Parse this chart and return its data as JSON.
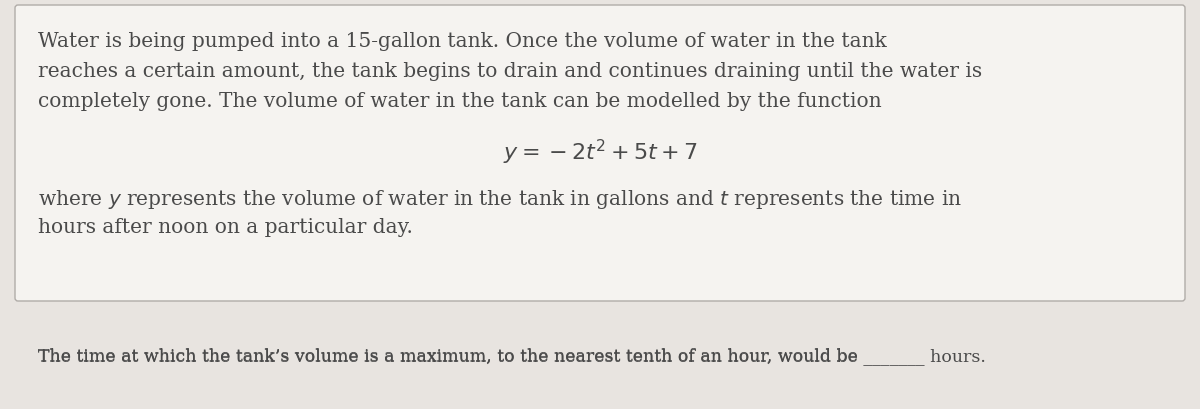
{
  "bg_color": "#e8e4e0",
  "box_bg_color": "#f5f3f0",
  "box_border_color": "#b0aca8",
  "para1_line1": "Water is being pumped into a 15-gallon tank. Once the volume of water in the tank",
  "para1_line2": "reaches a certain amount, the tank begins to drain and continues draining until the water is",
  "para1_line3": "completely gone. The volume of water in the tank can be modelled by the function",
  "formula": "$y = -2t^2 + 5t + 7$",
  "para2_line1": "where $y$ represents the volume of water in the tank in gallons and $t$ represents the time in",
  "para2_line2": "hours after noon on a particular day.",
  "bottom_text_pre": "The time at which the tank’s volume is a maximum, to the nearest tenth of an hour, would be ",
  "bottom_text_blank": "_______",
  "bottom_text_post": " hours.",
  "text_color": "#4a4a4a",
  "font_size_body": 14.5,
  "font_size_formula": 16,
  "font_size_bottom": 12.5
}
